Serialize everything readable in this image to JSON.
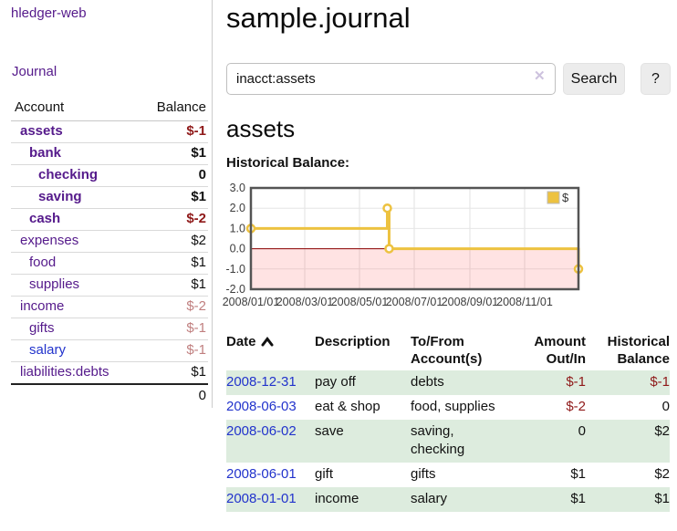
{
  "brand": "hledger-web",
  "nav": {
    "journal": "Journal"
  },
  "sidebar": {
    "headers": {
      "account": "Account",
      "balance": "Balance"
    },
    "accounts": [
      {
        "name": "assets",
        "level": 1,
        "balance": "$-1",
        "bold": true,
        "bal_style": "neg"
      },
      {
        "name": "bank",
        "level": 2,
        "balance": "$1",
        "bold": true,
        "bal_style": "pos"
      },
      {
        "name": "checking",
        "level": 3,
        "balance": "0",
        "bold": true,
        "bal_style": "pos"
      },
      {
        "name": "saving",
        "level": 3,
        "balance": "$1",
        "bold": true,
        "bal_style": "pos"
      },
      {
        "name": "cash",
        "level": 2,
        "balance": "$-2",
        "bold": true,
        "bal_style": "neg"
      },
      {
        "name": "expenses",
        "level": 1,
        "balance": "$2",
        "bold": false,
        "bal_style": "pos"
      },
      {
        "name": "food",
        "level": 2,
        "balance": "$1",
        "bold": false,
        "bal_style": "pos"
      },
      {
        "name": "supplies",
        "level": 2,
        "balance": "$1",
        "bold": false,
        "bal_style": "pos"
      },
      {
        "name": "income",
        "level": 1,
        "balance": "$-2",
        "bold": false,
        "bal_style": "neg-faded"
      },
      {
        "name": "gifts",
        "level": 2,
        "balance": "$-1",
        "bold": false,
        "bal_style": "neg-faded"
      },
      {
        "name": "salary",
        "level": 2,
        "balance": "$-1",
        "bold": false,
        "bal_style": "neg-faded",
        "link_style": "blue"
      },
      {
        "name": "liabilities:debts",
        "level": 1,
        "balance": "$1",
        "bold": false,
        "bal_style": "pos"
      }
    ],
    "total": "0"
  },
  "main": {
    "title": "sample.journal",
    "search": {
      "value": "inacct:assets",
      "clear_icon": "✕",
      "search_button": "Search",
      "help_button": "?"
    },
    "account_heading": "assets",
    "section_label": "Historical Balance:"
  },
  "register": {
    "headers": {
      "date": "Date",
      "description": "Description",
      "accounts": "To/From Account(s)",
      "amount": "Amount Out/In",
      "balance": "Historical Balance"
    },
    "rows": [
      {
        "date": "2008-12-31",
        "description": "pay off",
        "accounts": "debts",
        "amount": "$-1",
        "balance": "$-1"
      },
      {
        "date": "2008-06-03",
        "description": "eat & shop",
        "accounts": "food, supplies",
        "amount": "$-2",
        "balance": "0"
      },
      {
        "date": "2008-06-02",
        "description": "save",
        "accounts": "saving, checking",
        "amount": "0",
        "balance": "$2"
      },
      {
        "date": "2008-06-01",
        "description": "gift",
        "accounts": "gifts",
        "amount": "$1",
        "balance": "$2"
      },
      {
        "date": "2008-01-01",
        "description": "income",
        "accounts": "salary",
        "amount": "$1",
        "balance": "$1"
      }
    ]
  },
  "chart_data": {
    "type": "line",
    "title": "Historical Balance:",
    "step": true,
    "series": [
      {
        "name": "$",
        "color": "#edc240",
        "points": [
          [
            "2008-01-01",
            1.0
          ],
          [
            "2008-06-01",
            2.0
          ],
          [
            "2008-06-03",
            0.0
          ],
          [
            "2008-12-31",
            -1.0
          ]
        ]
      }
    ],
    "x_range": [
      "2008-01-01",
      "2008-12-31"
    ],
    "x_tick_labels": [
      "2008/01/01",
      "2008/03/01",
      "2008/05/01",
      "2008/07/01",
      "2008/09/01",
      "2008/11/01"
    ],
    "y_ticks": [
      3.0,
      2.0,
      1.0,
      0.0,
      -1.0,
      -2.0
    ],
    "ylim": [
      -2,
      3
    ],
    "grid": true,
    "legend": {
      "label": "$",
      "position": "top-right"
    },
    "negative_region_fill": "#fbdcdc",
    "zero_line_color": "#8b0000"
  },
  "colors": {
    "link_purple": "#551a8b",
    "link_blue": "#2233cc",
    "negative": "#8f1919",
    "negative_faded": "#c07f7f",
    "row_stripe_green": "#ddecde",
    "chart_line": "#edc240",
    "chart_border": "#545454"
  }
}
